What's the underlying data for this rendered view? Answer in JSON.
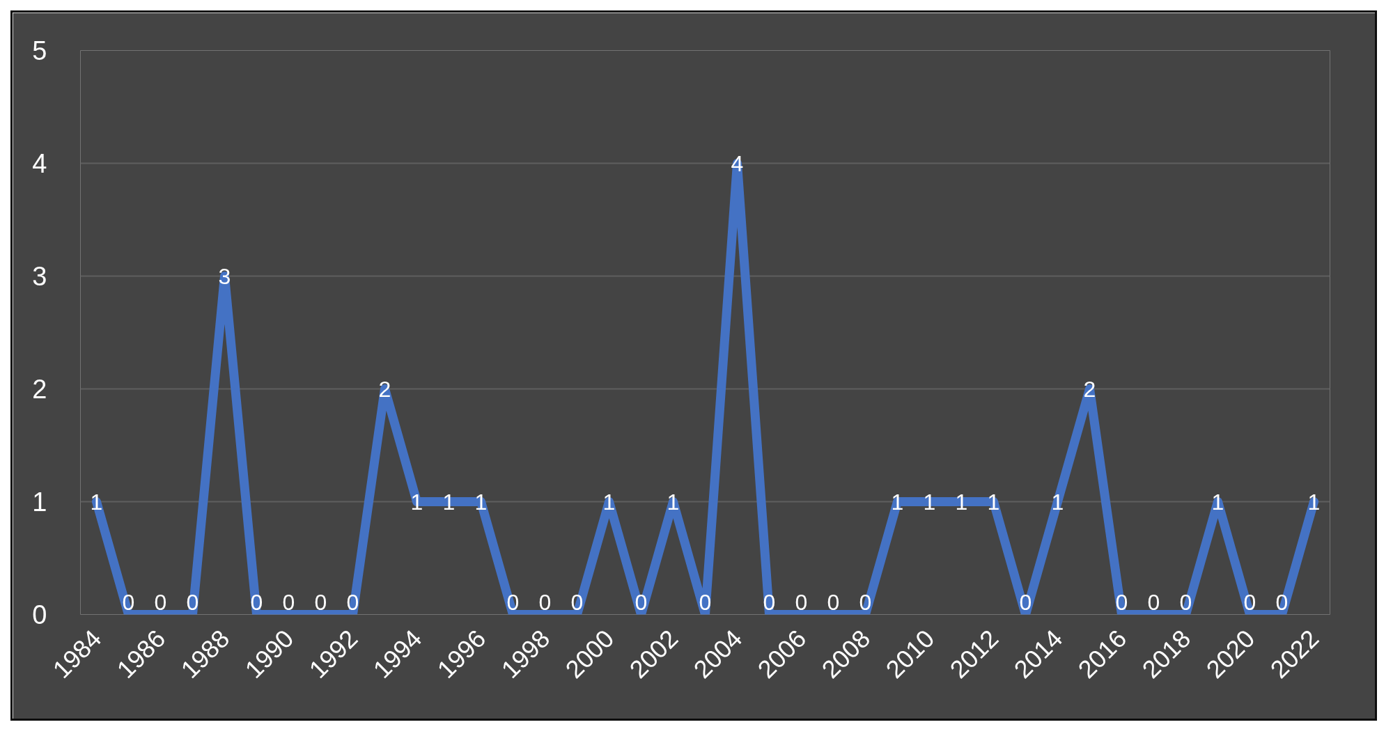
{
  "chart_data": {
    "type": "line",
    "x": [
      1984,
      1985,
      1986,
      1987,
      1988,
      1989,
      1990,
      1991,
      1992,
      1993,
      1994,
      1995,
      1996,
      1997,
      1998,
      1999,
      2000,
      2001,
      2002,
      2003,
      2004,
      2005,
      2006,
      2007,
      2008,
      2009,
      2010,
      2011,
      2012,
      2013,
      2014,
      2015,
      2016,
      2017,
      2018,
      2019,
      2020,
      2021,
      2022
    ],
    "values": [
      1,
      0,
      0,
      0,
      3,
      0,
      0,
      0,
      0,
      2,
      1,
      1,
      1,
      0,
      0,
      0,
      1,
      0,
      1,
      0,
      4,
      0,
      0,
      0,
      0,
      1,
      1,
      1,
      1,
      0,
      1,
      2,
      0,
      0,
      0,
      1,
      0,
      0,
      1
    ],
    "color": "#4472c4",
    "xlim": [
      1983.5,
      2022.5
    ],
    "xticks": [
      1984,
      1986,
      1988,
      1990,
      1992,
      1994,
      1996,
      1998,
      2000,
      2002,
      2004,
      2006,
      2008,
      2010,
      2012,
      2014,
      2016,
      2018,
      2020,
      2022
    ],
    "ylim": [
      0,
      5
    ],
    "yticks": [
      0,
      1,
      2,
      3,
      4,
      5
    ],
    "grid": "y",
    "data_labels": true
  }
}
